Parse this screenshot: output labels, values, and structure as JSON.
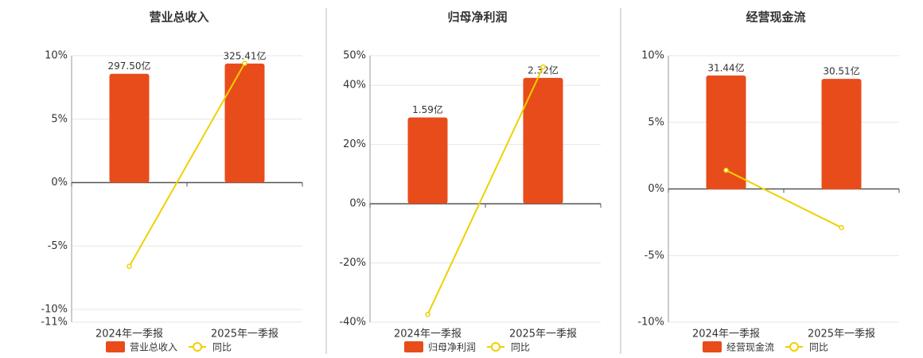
{
  "chart_data": [
    {
      "type": "bar",
      "title": "营业总收入",
      "categories": [
        "2024年一季报",
        "2025年一季报"
      ],
      "series": [
        {
          "name": "营业总收入",
          "color": "#e84c1b",
          "values": [
            297.5,
            325.41
          ],
          "value_labels": [
            "297.50亿",
            "325.41亿"
          ],
          "axis": "y2"
        },
        {
          "name": "同比",
          "type": "line",
          "color": "#f0d000",
          "values": [
            -6.6,
            9.4
          ]
        }
      ],
      "ylim": [
        -11,
        10
      ],
      "yticks": [
        {
          "value": 10,
          "label": "10%"
        },
        {
          "value": 5,
          "label": "5%"
        },
        {
          "value": 0,
          "label": "0%"
        },
        {
          "value": -5,
          "label": "-5%"
        },
        {
          "value": -10,
          "label": "-10%"
        },
        {
          "value": -11,
          "label": "-11%"
        }
      ],
      "y2lim": [
        -382,
        347
      ],
      "grid": true
    },
    {
      "type": "bar",
      "title": "归母净利润",
      "categories": [
        "2024年一季报",
        "2025年一季报"
      ],
      "series": [
        {
          "name": "归母净利润",
          "color": "#e84c1b",
          "values": [
            1.59,
            2.32
          ],
          "value_labels": [
            "1.59亿",
            "2.32亿"
          ],
          "axis": "y2"
        },
        {
          "name": "同比",
          "type": "line",
          "color": "#f0d000",
          "values": [
            -37.4,
            46.2
          ]
        }
      ],
      "ylim": [
        -40,
        50
      ],
      "yticks": [
        {
          "value": 50,
          "label": "50%"
        },
        {
          "value": 40,
          "label": "40%"
        },
        {
          "value": 20,
          "label": "20%"
        },
        {
          "value": 0,
          "label": "0%"
        },
        {
          "value": -20,
          "label": "-20%"
        },
        {
          "value": -40,
          "label": "-40%"
        }
      ],
      "y2lim": [
        -2.19,
        2.73
      ],
      "grid": true
    },
    {
      "type": "bar",
      "title": "经营现金流",
      "categories": [
        "2024年一季报",
        "2025年一季报"
      ],
      "series": [
        {
          "name": "经营现金流",
          "color": "#e84c1b",
          "values": [
            31.44,
            30.51
          ],
          "value_labels": [
            "31.44亿",
            "30.51亿"
          ],
          "axis": "y2"
        },
        {
          "name": "同比",
          "type": "line",
          "color": "#f0d000",
          "values": [
            1.4,
            -2.9
          ]
        }
      ],
      "ylim": [
        -10,
        10
      ],
      "yticks": [
        {
          "value": 10,
          "label": "10%"
        },
        {
          "value": 5,
          "label": "5%"
        },
        {
          "value": 0,
          "label": "0%"
        },
        {
          "value": -5,
          "label": "-5%"
        },
        {
          "value": -10,
          "label": "-10%"
        }
      ],
      "y2lim": [
        -36.7,
        36.9
      ],
      "grid": true
    }
  ]
}
